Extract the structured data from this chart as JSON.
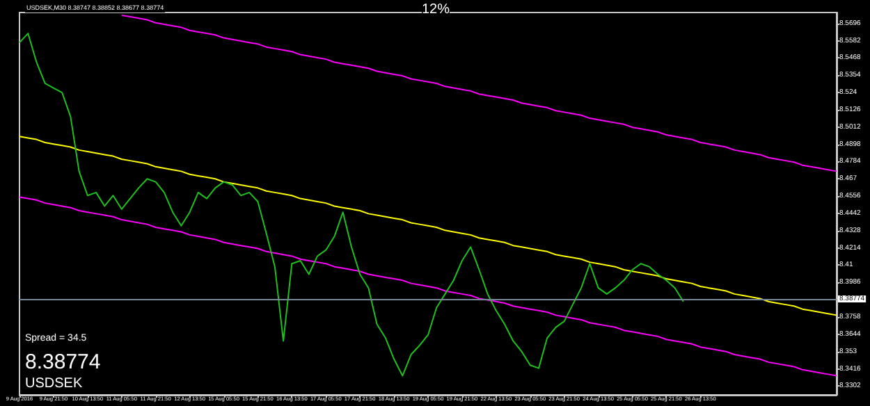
{
  "chart_data": {
    "type": "line",
    "title": "USDSEK,M30 8.38747 8.38852 8.38677 8.38774",
    "categories": [
      "9 Aug 2016",
      null,
      null,
      null,
      "9 Aug 21:50",
      null,
      null,
      null,
      "10 Aug 13:50",
      null,
      null,
      null,
      "11 Aug 05:50",
      null,
      null,
      null,
      "11 Aug 21:50",
      null,
      null,
      null,
      "12 Aug 13:50",
      null,
      null,
      null,
      "15 Aug 05:50",
      null,
      null,
      null,
      "15 Aug 21:50",
      null,
      null,
      null,
      "16 Aug 13:50",
      null,
      null,
      null,
      "17 Aug 05:50",
      null,
      null,
      null,
      "17 Aug 21:50",
      null,
      null,
      null,
      "18 Aug 13:50",
      null,
      null,
      null,
      "19 Aug 05:50",
      null,
      null,
      null,
      "19 Aug 21:50",
      null,
      null,
      null,
      "22 Aug 13:50",
      null,
      null,
      null,
      "23 Aug 05:50",
      null,
      null,
      null,
      "23 Aug 21:50",
      null,
      null,
      null,
      "24 Aug 13:50",
      null,
      null,
      null,
      "25 Aug 05:50",
      null,
      null,
      null,
      "25 Aug 21:50",
      null,
      null,
      null,
      "26 Aug 13:50",
      null,
      null,
      null,
      null,
      null,
      null,
      null,
      null,
      null,
      null,
      null,
      null,
      null,
      null,
      null,
      null
    ],
    "series": [
      {
        "color": "#1fbf1f",
        "values": [
          8.557,
          8.563,
          8.544,
          8.53,
          8.527,
          8.524,
          8.508,
          8.472,
          8.456,
          8.458,
          8.449,
          8.456,
          8.447,
          8.454,
          8.461,
          8.467,
          8.465,
          8.458,
          8.445,
          8.436,
          8.445,
          8.458,
          8.454,
          8.461,
          8.465,
          8.463,
          8.456,
          8.458,
          8.452,
          8.431,
          8.409,
          8.36,
          8.411,
          8.413,
          8.404,
          8.416,
          8.42,
          8.429,
          8.445,
          8.422,
          8.404,
          8.395,
          8.371,
          8.362,
          8.348,
          8.337,
          8.351,
          8.357,
          8.364,
          8.382,
          8.391,
          8.4,
          8.413,
          8.422,
          8.407,
          8.391,
          8.38,
          8.371,
          8.36,
          8.353,
          8.344,
          8.342,
          8.362,
          8.369,
          8.373,
          8.384,
          8.395,
          8.411,
          8.395,
          8.391,
          8.395,
          8.4,
          8.407,
          8.411,
          8.409,
          8.404,
          8.4,
          8.395,
          8.386,
          null,
          null,
          null,
          null,
          null,
          null,
          null,
          null,
          null,
          null,
          null,
          null,
          null,
          null,
          null,
          null,
          null,
          null
        ]
      },
      {
        "type": "line",
        "color": "#ffff00",
        "values": [
          8.495,
          8.494,
          8.493,
          8.491,
          8.49,
          8.489,
          8.488,
          8.486,
          8.485,
          8.484,
          8.483,
          8.482,
          8.48,
          8.479,
          8.478,
          8.477,
          8.475,
          8.474,
          8.473,
          8.472,
          8.47,
          8.469,
          8.468,
          8.467,
          8.465,
          8.464,
          8.463,
          8.462,
          8.461,
          8.459,
          8.458,
          8.457,
          8.456,
          8.454,
          8.453,
          8.452,
          8.451,
          8.449,
          8.448,
          8.447,
          8.446,
          8.444,
          8.443,
          8.442,
          8.441,
          8.44,
          8.438,
          8.437,
          8.436,
          8.435,
          8.433,
          8.432,
          8.431,
          8.43,
          8.428,
          8.427,
          8.426,
          8.425,
          8.423,
          8.422,
          8.421,
          8.42,
          8.419,
          8.417,
          8.416,
          8.415,
          8.414,
          8.412,
          8.411,
          8.41,
          8.409,
          8.407,
          8.406,
          8.405,
          8.404,
          8.403,
          8.401,
          8.4,
          8.399,
          8.398,
          8.396,
          8.395,
          8.394,
          8.393,
          8.391,
          8.39,
          8.389,
          8.388,
          8.386,
          8.385,
          8.384,
          8.383,
          8.381,
          8.38,
          8.379,
          8.378,
          8.377
        ]
      },
      {
        "type": "line",
        "color": "#ff00ff",
        "values": [
          null,
          null,
          null,
          null,
          null,
          null,
          null,
          null,
          null,
          null,
          null,
          null,
          8.575,
          8.574,
          8.573,
          8.572,
          8.57,
          8.569,
          8.568,
          8.567,
          8.565,
          8.564,
          8.563,
          8.562,
          8.56,
          8.559,
          8.558,
          8.557,
          8.556,
          8.554,
          8.553,
          8.552,
          8.551,
          8.549,
          8.548,
          8.547,
          8.546,
          8.544,
          8.543,
          8.542,
          8.541,
          8.54,
          8.538,
          8.537,
          8.536,
          8.535,
          8.533,
          8.532,
          8.531,
          8.53,
          8.528,
          8.527,
          8.526,
          8.525,
          8.523,
          8.522,
          8.521,
          8.52,
          8.519,
          8.517,
          8.516,
          8.515,
          8.514,
          8.512,
          8.511,
          8.51,
          8.509,
          8.507,
          8.506,
          8.505,
          8.504,
          8.503,
          8.501,
          8.5,
          8.499,
          8.498,
          8.496,
          8.495,
          8.494,
          8.493,
          8.491,
          8.49,
          8.489,
          8.488,
          8.486,
          8.485,
          8.484,
          8.483,
          8.481,
          8.48,
          8.479,
          8.478,
          8.476,
          8.475,
          8.474,
          8.473,
          8.472
        ]
      },
      {
        "type": "line",
        "color": "#ff00ff",
        "values": [
          8.455,
          8.454,
          8.453,
          8.451,
          8.45,
          8.449,
          8.448,
          8.446,
          8.445,
          8.444,
          8.443,
          8.442,
          8.44,
          8.439,
          8.438,
          8.437,
          8.435,
          8.434,
          8.433,
          8.432,
          8.43,
          8.429,
          8.428,
          8.427,
          8.425,
          8.424,
          8.423,
          8.422,
          8.421,
          8.419,
          8.418,
          8.417,
          8.416,
          8.414,
          8.413,
          8.412,
          8.411,
          8.409,
          8.408,
          8.407,
          8.406,
          8.404,
          8.403,
          8.402,
          8.401,
          8.4,
          8.398,
          8.397,
          8.396,
          8.395,
          8.393,
          8.392,
          8.391,
          8.39,
          8.388,
          8.387,
          8.386,
          8.385,
          8.383,
          8.382,
          8.381,
          8.38,
          8.379,
          8.377,
          8.376,
          8.375,
          8.374,
          8.372,
          8.371,
          8.37,
          8.369,
          8.367,
          8.366,
          8.365,
          8.364,
          8.363,
          8.361,
          8.36,
          8.359,
          8.358,
          8.356,
          8.355,
          8.354,
          8.353,
          8.351,
          8.35,
          8.349,
          8.348,
          8.346,
          8.345,
          8.344,
          8.343,
          8.341,
          8.34,
          8.339,
          8.338,
          8.337
        ]
      }
    ],
    "ylim": [
      8.3244,
      8.5768
    ],
    "yticks": [
      8.5696,
      8.5582,
      8.5468,
      8.5354,
      8.524,
      8.5126,
      8.5012,
      8.4898,
      8.4784,
      8.467,
      8.4556,
      8.4442,
      8.4328,
      8.4214,
      8.41,
      8.3986,
      8.3758,
      8.3644,
      8.353,
      8.3416,
      8.3302
    ],
    "ref_lines": [
      {
        "axis": "y",
        "value": 8.38774,
        "label": "8.38774",
        "color": "#778899"
      }
    ],
    "annotations": [
      "12%",
      "Spread = 34.5",
      "8.38774",
      "USDSEK"
    ],
    "grid": false,
    "marker": "none",
    "line_style": "solid"
  }
}
